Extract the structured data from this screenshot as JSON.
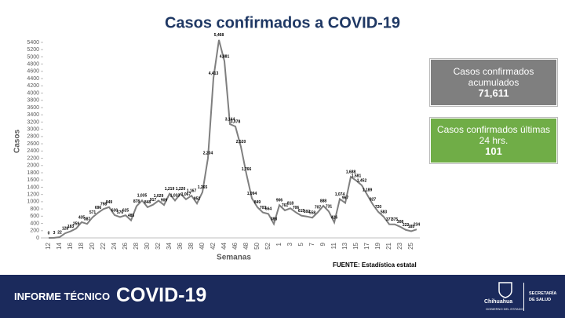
{
  "chart_data": {
    "type": "line",
    "title": "Casos confirmados a COVID-19",
    "x_label": "Semanas",
    "y_label": "Casos",
    "color": "#7f7f7f",
    "categories": [
      "12",
      null,
      "14",
      null,
      "16",
      null,
      "18",
      null,
      "20",
      null,
      "22",
      null,
      "24",
      null,
      "26",
      null,
      "28",
      null,
      "30",
      null,
      "32",
      null,
      "34",
      null,
      "36",
      null,
      "38",
      null,
      "40",
      null,
      "42",
      null,
      "44",
      null,
      "46",
      null,
      "48",
      null,
      "50",
      null,
      "52",
      null,
      "1",
      null,
      "3",
      null,
      "5",
      null,
      "7",
      null,
      "9",
      null,
      "11",
      null,
      "13",
      null,
      "15",
      null,
      "17",
      null,
      "19",
      null,
      "21",
      null,
      "23",
      null,
      "25",
      null
    ],
    "values": [
      0,
      3,
      22,
      128,
      183,
      259,
      435,
      387,
      571,
      696,
      798,
      849,
      630,
      576,
      625,
      485,
      878,
      1035,
      848,
      917,
      1029,
      909,
      1219,
      1033,
      1220,
      1067,
      1167,
      952,
      1265,
      2204,
      4413,
      5468,
      4881,
      3144,
      3078,
      2520,
      1766,
      1094,
      849,
      703,
      664,
      388,
      906,
      761,
      818,
      706,
      615,
      592,
      558,
      707,
      888,
      731,
      426,
      1074,
      967,
      1688,
      1581,
      1452,
      1189,
      927,
      720,
      583,
      377,
      375,
      308,
      222,
      185,
      234
    ],
    "value_labels": [
      "0",
      "3",
      "22",
      "128",
      "183",
      "259",
      "435",
      "387",
      "571",
      "696",
      "798",
      "849",
      "630",
      "576",
      "625",
      "485",
      "878",
      "1,035",
      "848",
      "917",
      "1,029",
      "909",
      "1,219",
      "1,033",
      "1,220",
      "1,067",
      "1,167",
      "952",
      "1,265",
      "2,204",
      "4,413",
      "5,468",
      "4,881",
      "3,144",
      "3,078",
      "2,520",
      "1,766",
      "1,094",
      "849",
      "703",
      "664",
      "388",
      "906",
      "761",
      "818",
      "706",
      "615",
      "592",
      "558",
      "707",
      "888",
      "731",
      "426",
      "1,074",
      "967",
      "1,688",
      "1,581",
      "1,452",
      "1,189",
      "927",
      "720",
      "583",
      "377",
      "375",
      "308",
      "222",
      "185",
      "234"
    ],
    "ylim": [
      0,
      5400
    ],
    "yticks": [
      0,
      200,
      400,
      600,
      800,
      {
        "value": 1000,
        "label": "1000"
      },
      1200,
      1400,
      1600,
      1800,
      2000,
      2200,
      2400,
      2600,
      2800,
      3000,
      3200,
      3400,
      3600,
      3800,
      4000,
      4200,
      4400,
      4600,
      4800,
      5000,
      5200,
      5400
    ],
    "source": "FUENTE: Estadística estatal"
  },
  "boxes": [
    {
      "label": "Casos confirmados acumulados",
      "value": "71,611",
      "color": "#7f7f7f"
    },
    {
      "label": "Casos confirmados últimas 24 hrs.",
      "value": "101",
      "color": "#70ad47"
    }
  ],
  "footer": {
    "report": "INFORME TÉCNICO",
    "topic": "COVID-19",
    "state": "Chihuahua",
    "government": "GOBIERNO DEL ESTADO",
    "department": "SECRETARÍA DE SALUD"
  }
}
